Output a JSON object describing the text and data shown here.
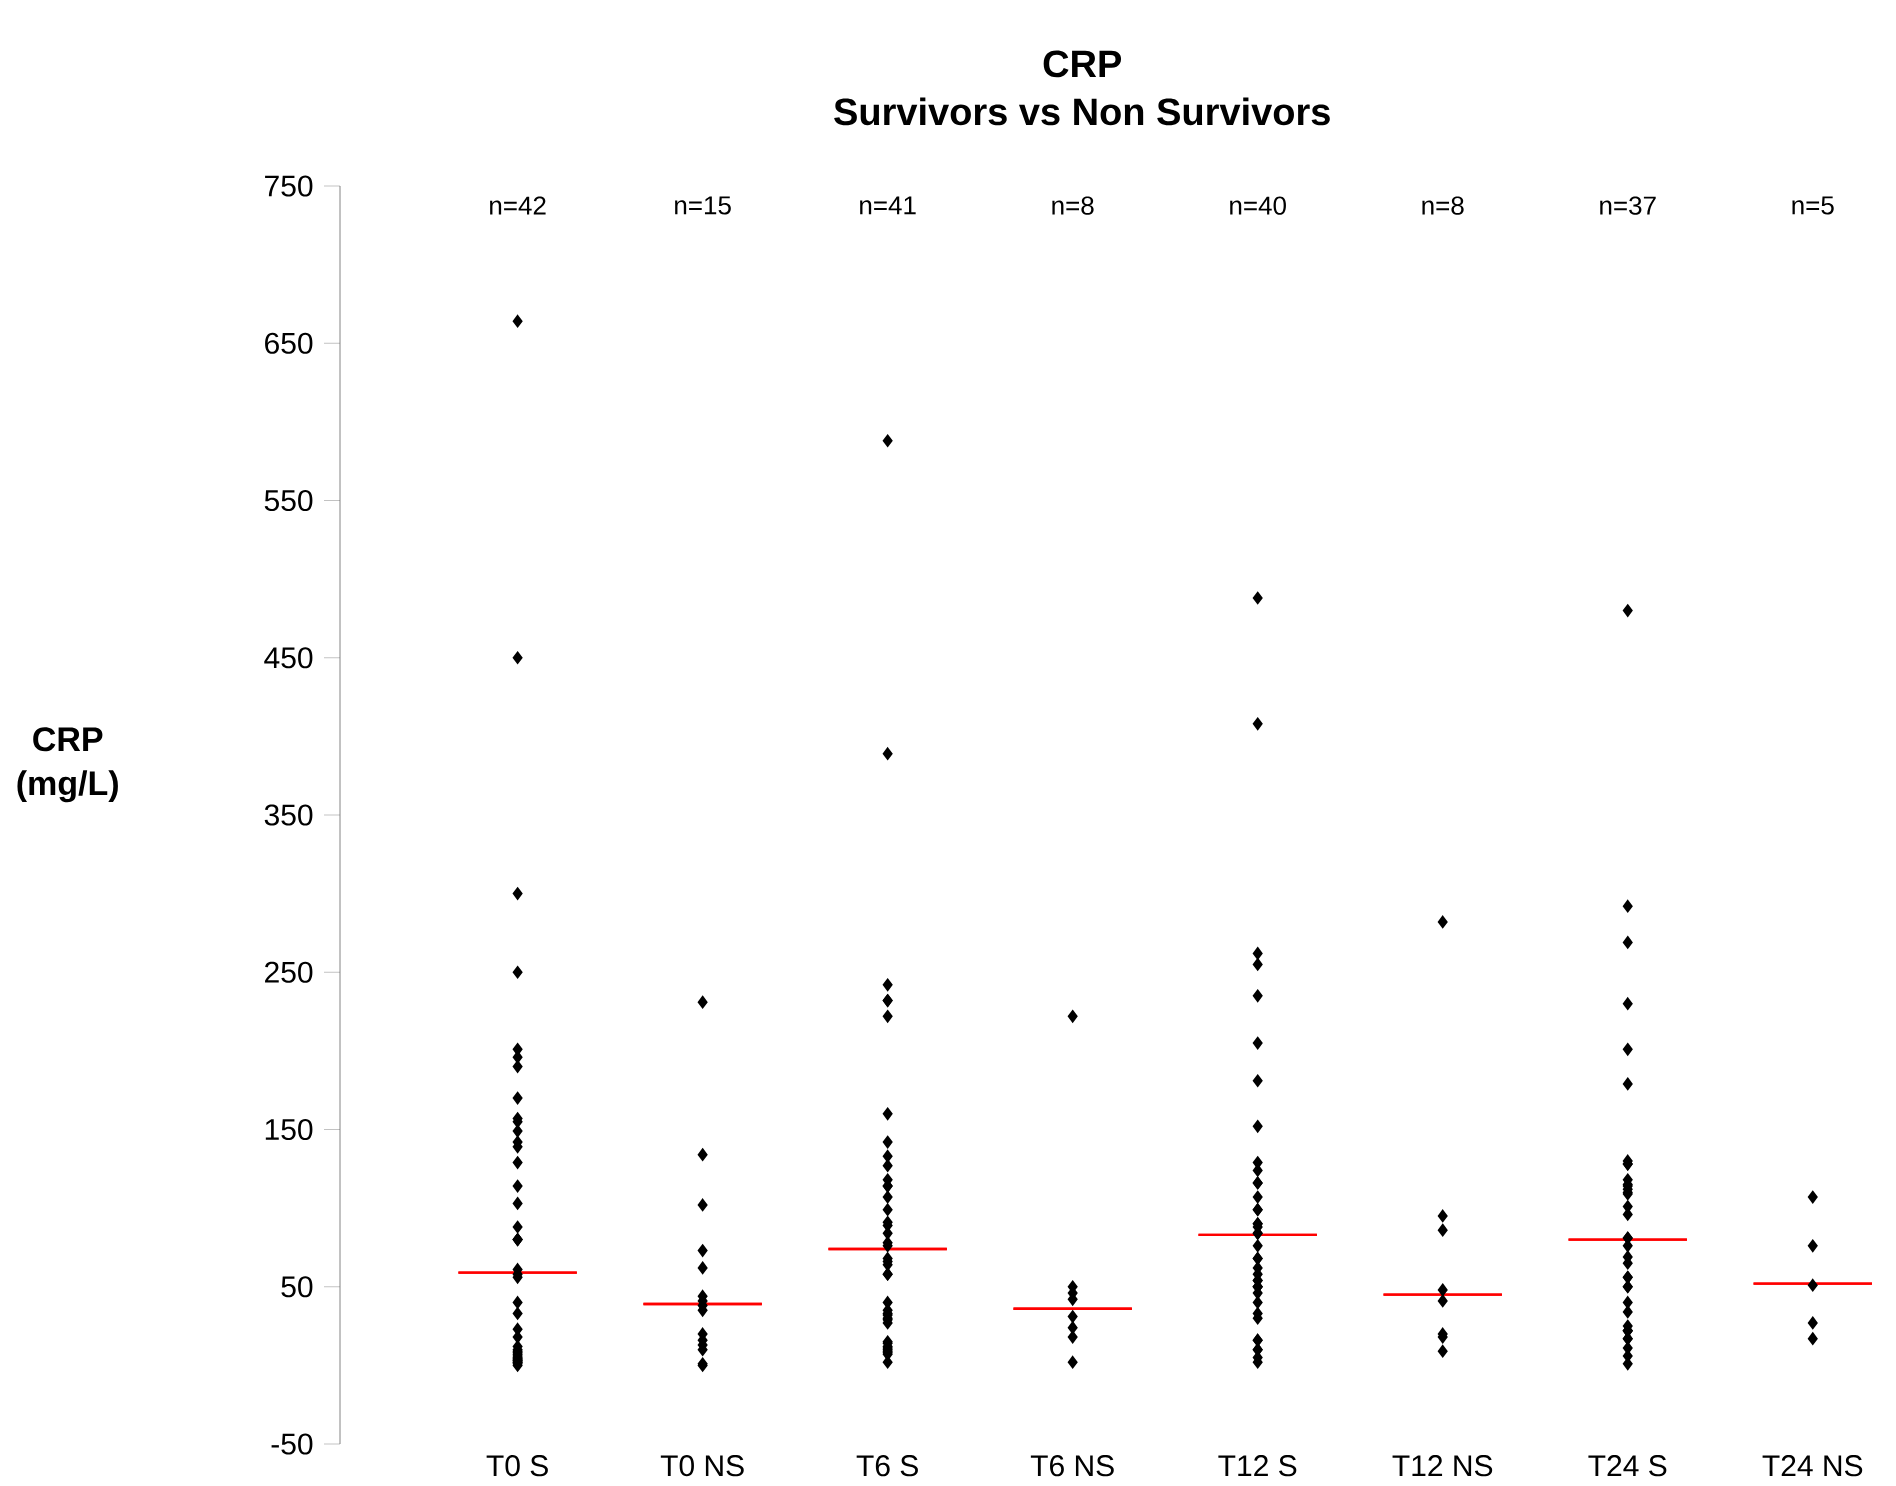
{
  "chart_data": {
    "type": "scatter",
    "title": "CRP",
    "subtitle": "Survivors vs Non Survivors",
    "ylabel": "CRP (mg/L)",
    "categories": [
      "T0 S",
      "T0 NS",
      "T6 S",
      "T6 NS",
      "T12 S",
      "T12 NS",
      "T24 S",
      "T24 NS"
    ],
    "ylim": [
      -50,
      750
    ],
    "yticks": [
      -50,
      50,
      150,
      250,
      350,
      450,
      550,
      650,
      750
    ],
    "series": [
      {
        "marker": "diamond",
        "color": "#000000",
        "x": [
          "T0 S",
          "T0 S",
          "T0 S",
          "T0 S",
          "T0 S",
          "T0 S",
          "T0 S",
          "T0 S",
          "T0 S",
          "T0 S",
          "T0 S",
          "T0 S",
          "T0 S",
          "T0 S",
          "T0 S",
          "T0 S",
          "T0 S",
          "T0 S",
          "T0 S",
          "T0 S",
          "T0 S",
          "T0 S",
          "T0 S",
          "T0 S",
          "T0 S",
          "T0 S",
          "T0 S",
          "T0 S",
          "T0 S",
          "T0 S",
          "T0 S",
          "T0 S",
          "T0 S",
          "T0 S",
          "T0 S",
          "T0 S",
          "T0 S",
          "T0 S",
          "T0 S",
          "T0 S",
          "T0 S",
          "T0 S",
          "T0 NS",
          "T0 NS",
          "T0 NS",
          "T0 NS",
          "T0 NS",
          "T0 NS",
          "T0 NS",
          "T0 NS",
          "T0 NS",
          "T0 NS",
          "T0 NS",
          "T0 NS",
          "T0 NS",
          "T0 NS",
          "T0 NS",
          "T6 S",
          "T6 S",
          "T6 S",
          "T6 S",
          "T6 S",
          "T6 S",
          "T6 S",
          "T6 S",
          "T6 S",
          "T6 S",
          "T6 S",
          "T6 S",
          "T6 S",
          "T6 S",
          "T6 S",
          "T6 S",
          "T6 S",
          "T6 S",
          "T6 S",
          "T6 S",
          "T6 S",
          "T6 S",
          "T6 S",
          "T6 S",
          "T6 S",
          "T6 S",
          "T6 S",
          "T6 S",
          "T6 S",
          "T6 S",
          "T6 S",
          "T6 S",
          "T6 S",
          "T6 S",
          "T6 S",
          "T6 S",
          "T6 S",
          "T6 S",
          "T6 S",
          "T6 S",
          "T6 S",
          "T6 NS",
          "T6 NS",
          "T6 NS",
          "T6 NS",
          "T6 NS",
          "T6 NS",
          "T6 NS",
          "T6 NS",
          "T12 S",
          "T12 S",
          "T12 S",
          "T12 S",
          "T12 S",
          "T12 S",
          "T12 S",
          "T12 S",
          "T12 S",
          "T12 S",
          "T12 S",
          "T12 S",
          "T12 S",
          "T12 S",
          "T12 S",
          "T12 S",
          "T12 S",
          "T12 S",
          "T12 S",
          "T12 S",
          "T12 S",
          "T12 S",
          "T12 S",
          "T12 S",
          "T12 S",
          "T12 S",
          "T12 S",
          "T12 S",
          "T12 S",
          "T12 S",
          "T12 S",
          "T12 S",
          "T12 S",
          "T12 S",
          "T12 S",
          "T12 S",
          "T12 S",
          "T12 S",
          "T12 S",
          "T12 S",
          "T12 NS",
          "T12 NS",
          "T12 NS",
          "T12 NS",
          "T12 NS",
          "T12 NS",
          "T12 NS",
          "T12 NS",
          "T24 S",
          "T24 S",
          "T24 S",
          "T24 S",
          "T24 S",
          "T24 S",
          "T24 S",
          "T24 S",
          "T24 S",
          "T24 S",
          "T24 S",
          "T24 S",
          "T24 S",
          "T24 S",
          "T24 S",
          "T24 S",
          "T24 S",
          "T24 S",
          "T24 S",
          "T24 S",
          "T24 S",
          "T24 S",
          "T24 S",
          "T24 S",
          "T24 S",
          "T24 S",
          "T24 S",
          "T24 S",
          "T24 S",
          "T24 S",
          "T24 S",
          "T24 S",
          "T24 S",
          "T24 S",
          "T24 S",
          "T24 S",
          "T24 S",
          "T24 NS",
          "T24 NS",
          "T24 NS",
          "T24 NS",
          "T24 NS"
        ],
        "values": [
          664,
          450,
          300,
          250,
          201,
          196,
          190,
          170,
          157,
          155,
          149,
          142,
          139,
          129,
          114,
          103,
          88,
          80,
          80,
          80,
          61,
          58,
          56,
          40,
          33,
          23,
          18,
          12,
          10,
          9,
          8,
          7,
          6,
          5,
          4,
          4,
          3,
          3,
          2,
          2,
          1,
          0,
          231,
          134,
          102,
          73,
          62,
          44,
          41,
          38,
          35,
          20,
          16,
          13,
          10,
          1,
          0,
          588,
          389,
          242,
          232,
          232,
          222,
          160,
          142,
          133,
          127,
          118,
          114,
          114,
          107,
          99,
          91,
          89,
          84,
          78,
          76,
          68,
          66,
          64,
          58,
          58,
          40,
          35,
          33,
          32,
          30,
          29,
          27,
          15,
          14,
          12,
          11,
          10,
          9,
          8,
          7,
          2,
          222,
          50,
          46,
          42,
          31,
          24,
          18,
          2,
          488,
          408,
          262,
          255,
          235,
          205,
          181,
          152,
          129,
          124,
          116,
          116,
          107,
          99,
          99,
          90,
          90,
          88,
          84,
          84,
          76,
          68,
          68,
          62,
          58,
          54,
          54,
          50,
          50,
          50,
          46,
          40,
          33,
          30,
          16,
          16,
          10,
          10,
          5,
          2,
          282,
          95,
          86,
          48,
          41,
          20,
          18,
          9,
          480,
          292,
          269,
          230,
          201,
          179,
          130,
          128,
          128,
          118,
          115,
          114,
          112,
          110,
          109,
          101,
          96,
          81,
          81,
          76,
          69,
          65,
          56,
          56,
          50,
          50,
          40,
          34,
          25,
          22,
          22,
          22,
          17,
          17,
          11,
          6,
          1,
          107,
          76,
          51,
          27,
          17
        ]
      },
      {
        "type": "box",
        "color": "#ff0000",
        "boxes": [
          {
            "low": 59,
            "q1": 59,
            "median": 59,
            "q3": 59,
            "high": 59
          },
          {
            "low": 39,
            "q1": 39,
            "median": 39,
            "q3": 39,
            "high": 39
          },
          {
            "low": 74,
            "q1": 74,
            "median": 74,
            "q3": 74,
            "high": 74
          },
          {
            "low": 36,
            "q1": 36,
            "median": 36,
            "q3": 36,
            "high": 36
          },
          {
            "low": 83,
            "q1": 83,
            "median": 83,
            "q3": 83,
            "high": 83
          },
          {
            "low": 45,
            "q1": 45,
            "median": 45,
            "q3": 45,
            "high": 45
          },
          {
            "low": 80,
            "q1": 80,
            "median": 80,
            "q3": 80,
            "high": 80
          },
          {
            "low": 52,
            "q1": 52,
            "median": 52,
            "q3": 52,
            "high": 52
          }
        ]
      }
    ],
    "annotations": [
      "n=42",
      "n=15",
      "n=41",
      "n=8",
      "n=40",
      "n=8",
      "n=37",
      "n=5"
    ]
  }
}
